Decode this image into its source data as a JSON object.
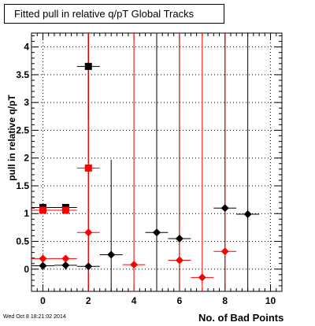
{
  "header": {
    "title": "Fitted pull in relative q/pT  Global Tracks"
  },
  "footer": {
    "timestamp": "Wed Oct  8 18:21:02 2014"
  },
  "chart_data": {
    "type": "scatter",
    "title": "Fitted pull in relative q/pT  Global Tracks",
    "xlabel": "No. of Bad Points",
    "ylabel": "pull in relative q/pT",
    "xlim": [
      -0.5,
      10.5
    ],
    "ylim": [
      -0.4,
      4.25
    ],
    "x_ticks": [
      0,
      2,
      4,
      6,
      8,
      10
    ],
    "y_ticks": [
      0,
      0.5,
      1,
      1.5,
      2,
      2.5,
      3,
      3.5,
      4
    ],
    "grid": true,
    "series": [
      {
        "marker": "diamond",
        "color": "#000000",
        "points": [
          {
            "x": 0,
            "y": 0.06,
            "ylo": -0.02,
            "yhi": 0.14
          },
          {
            "x": 1,
            "y": 0.07,
            "ylo": -0.01,
            "yhi": 0.15
          },
          {
            "x": 2,
            "y": 0.05,
            "ylo": -0.4,
            "yhi": 4.25
          },
          {
            "x": 3,
            "y": 0.26,
            "ylo": -0.4,
            "yhi": 1.97
          },
          {
            "x": 5,
            "y": 0.66,
            "ylo": -0.4,
            "yhi": 4.25
          },
          {
            "x": 6,
            "y": 0.55,
            "ylo": -0.4,
            "yhi": 4.25
          },
          {
            "x": 8,
            "y": 1.1,
            "ylo": -0.4,
            "yhi": 4.25
          },
          {
            "x": 9,
            "y": 0.99,
            "ylo": -0.4,
            "yhi": 4.25
          }
        ]
      },
      {
        "marker": "diamond",
        "color": "#ff0000",
        "points": [
          {
            "x": 0,
            "y": 0.19,
            "ylo": 0.13,
            "yhi": 0.25
          },
          {
            "x": 1,
            "y": 0.19,
            "ylo": 0.13,
            "yhi": 0.25
          },
          {
            "x": 2,
            "y": 0.66,
            "ylo": -0.4,
            "yhi": 4.25
          },
          {
            "x": 4,
            "y": 0.08,
            "ylo": -0.4,
            "yhi": 4.25
          },
          {
            "x": 6,
            "y": 0.16,
            "ylo": -0.4,
            "yhi": 4.25
          },
          {
            "x": 7,
            "y": -0.15,
            "ylo": -0.4,
            "yhi": 4.25
          },
          {
            "x": 8,
            "y": 0.32,
            "ylo": -0.4,
            "yhi": 4.25
          }
        ]
      },
      {
        "marker": "square",
        "color": "#000000",
        "points": [
          {
            "x": 0,
            "y": 1.11,
            "ylo": 1.06,
            "yhi": 1.16
          },
          {
            "x": 1,
            "y": 1.11,
            "ylo": 1.06,
            "yhi": 1.16
          },
          {
            "x": 2,
            "y": 3.65,
            "ylo": 2.7,
            "yhi": 4.25
          }
        ]
      },
      {
        "marker": "square",
        "color": "#ff0000",
        "points": [
          {
            "x": 0,
            "y": 1.06,
            "ylo": 1.01,
            "yhi": 1.11
          },
          {
            "x": 1,
            "y": 1.06,
            "ylo": 1.01,
            "yhi": 1.11
          },
          {
            "x": 2,
            "y": 1.82,
            "ylo": -0.4,
            "yhi": 4.25
          }
        ]
      }
    ]
  }
}
